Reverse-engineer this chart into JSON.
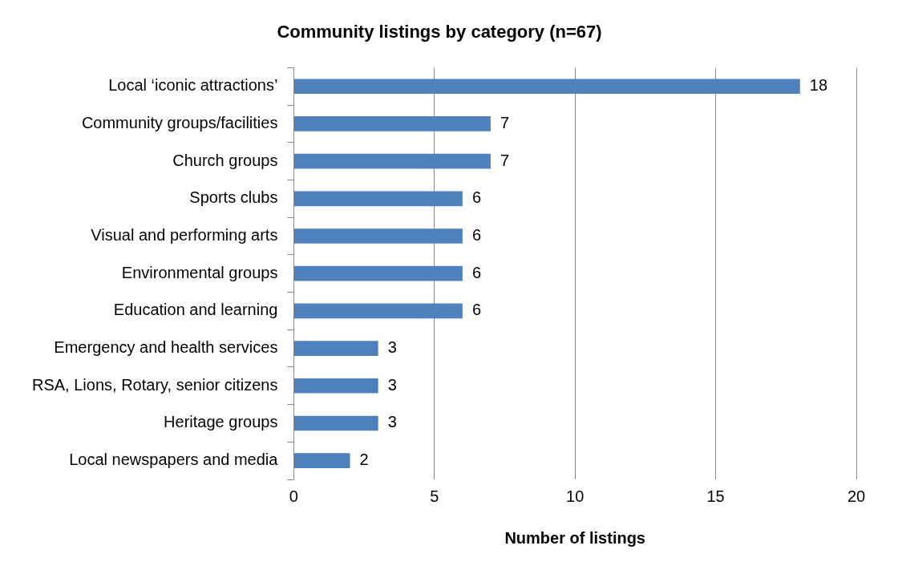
{
  "chart_data": {
    "type": "bar",
    "orientation": "horizontal",
    "title": "Community listings by category (n=67)",
    "xlabel": "Number of listings",
    "categories": [
      "Local ‘iconic attractions’",
      "Community groups/facilities",
      "Church groups",
      "Sports clubs",
      "Visual and performing arts",
      "Environmental groups",
      "Education and learning",
      "Emergency and health services",
      "RSA, Lions, Rotary, senior citizens",
      "Heritage groups",
      "Local newspapers and media"
    ],
    "values": [
      18,
      7,
      7,
      6,
      6,
      6,
      6,
      3,
      3,
      3,
      2
    ],
    "color": "#4f81bd",
    "xlim": [
      0,
      20
    ],
    "xticks": [
      0,
      5,
      10,
      15,
      20
    ],
    "grid": "x",
    "data_labels": true,
    "legend": false
  }
}
